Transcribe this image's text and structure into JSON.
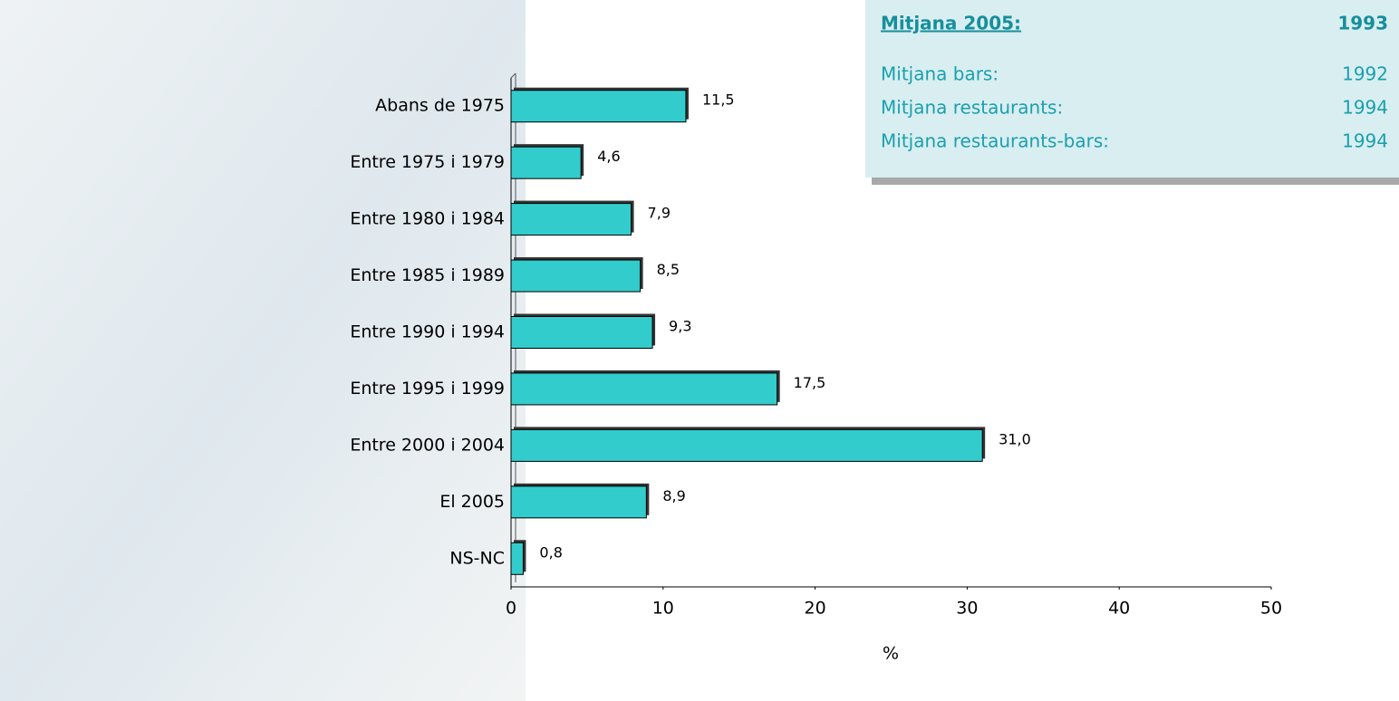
{
  "chart_data": {
    "type": "hbar",
    "categories": [
      "Abans de 1975",
      "Entre 1975 i 1979",
      "Entre 1980 i 1984",
      "Entre 1985 i 1989",
      "Entre 1990 i 1994",
      "Entre 1995 i 1999",
      "Entre 2000 i 2004",
      "El 2005",
      "NS-NC"
    ],
    "values": [
      11.5,
      4.6,
      7.9,
      8.5,
      9.3,
      17.5,
      31.0,
      8.9,
      0.8
    ],
    "value_labels": [
      "11,5",
      "4,6",
      "7,9",
      "8,5",
      "9,3",
      "17,5",
      "31,0",
      "8,9",
      "0,8"
    ],
    "color": "#33cccc",
    "xlim": [
      0,
      50
    ],
    "xticks": [
      0,
      10,
      20,
      30,
      40,
      50
    ],
    "xlabel": "%"
  },
  "summary": {
    "title": "Mitjana 2005:",
    "title_value": "1993",
    "rows": [
      [
        "Mitjana bars:",
        "1992"
      ],
      [
        "Mitjana restaurants:",
        "1994"
      ],
      [
        "Mitjana restaurants-bars:",
        "1994"
      ]
    ]
  }
}
